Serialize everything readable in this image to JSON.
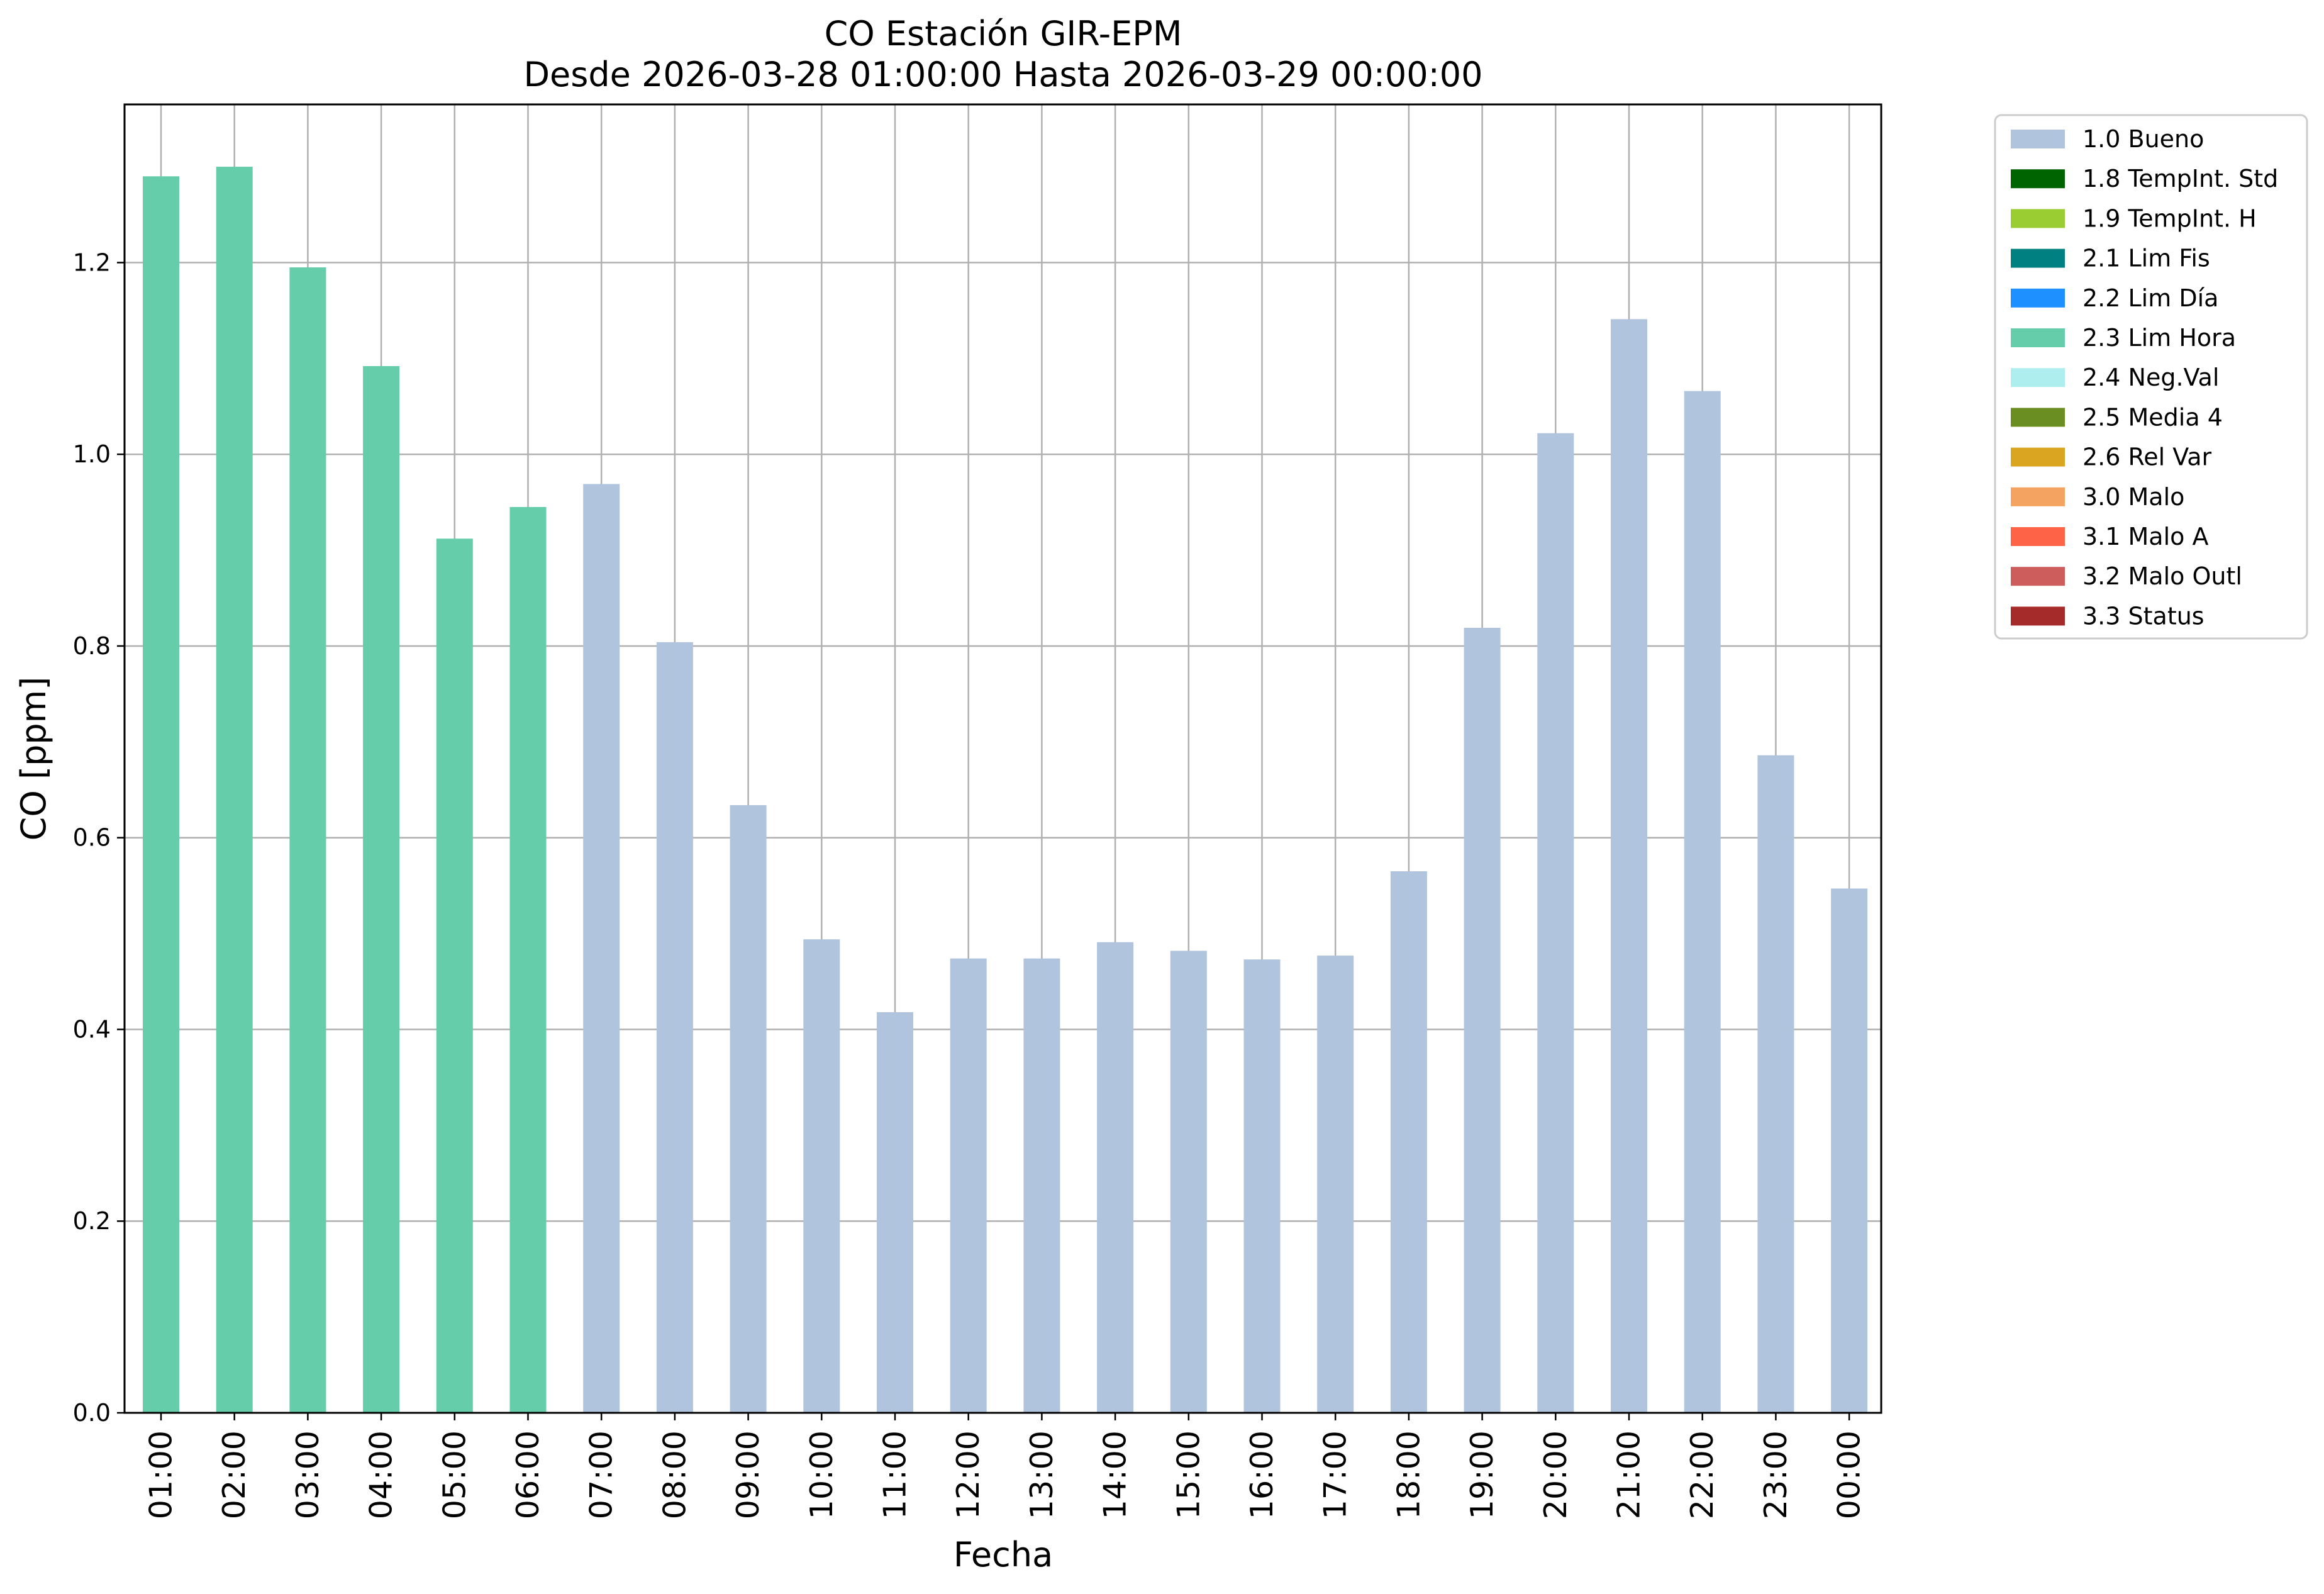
{
  "chart_data": {
    "type": "bar",
    "title": "CO Estación GIR-EPM",
    "subtitle": "Desde 2026-03-28 01:00:00 Hasta 2026-03-29 00:00:00",
    "xlabel": "Fecha",
    "ylabel": "CO [ppm]",
    "ylim": [
      0,
      1.365
    ],
    "yticks": [
      "0.0",
      "0.2",
      "0.4",
      "0.6",
      "0.8",
      "1.0",
      "1.2"
    ],
    "ytick_values": [
      0,
      0.2,
      0.4,
      0.6,
      0.8,
      1.0,
      1.2
    ],
    "grid": true,
    "legend_position": "outside right, top",
    "categories": [
      "01:00",
      "02:00",
      "03:00",
      "04:00",
      "05:00",
      "06:00",
      "07:00",
      "08:00",
      "09:00",
      "10:00",
      "11:00",
      "12:00",
      "13:00",
      "14:00",
      "15:00",
      "16:00",
      "17:00",
      "18:00",
      "19:00",
      "20:00",
      "21:00",
      "22:00",
      "23:00",
      "00:00"
    ],
    "values": [
      1.29,
      1.3,
      1.195,
      1.092,
      0.912,
      0.945,
      0.969,
      0.804,
      0.634,
      0.494,
      0.418,
      0.474,
      0.474,
      0.491,
      0.482,
      0.473,
      0.477,
      0.565,
      0.819,
      1.022,
      1.141,
      1.066,
      0.686,
      0.547
    ],
    "flags": [
      "2.3 Lim Hora",
      "2.3 Lim Hora",
      "2.3 Lim Hora",
      "2.3 Lim Hora",
      "2.3 Lim Hora",
      "2.3 Lim Hora",
      "1.0 Bueno",
      "1.0 Bueno",
      "1.0 Bueno",
      "1.0 Bueno",
      "1.0 Bueno",
      "1.0 Bueno",
      "1.0 Bueno",
      "1.0 Bueno",
      "1.0 Bueno",
      "1.0 Bueno",
      "1.0 Bueno",
      "1.0 Bueno",
      "1.0 Bueno",
      "1.0 Bueno",
      "1.0 Bueno",
      "1.0 Bueno",
      "1.0 Bueno",
      "1.0 Bueno"
    ],
    "legend": [
      {
        "label": "1.0 Bueno",
        "color": "#b0c4de"
      },
      {
        "label": "1.8 TempInt. Std",
        "color": "#006400"
      },
      {
        "label": "1.9 TempInt. H",
        "color": "#9acd32"
      },
      {
        "label": "2.1 Lim Fis",
        "color": "#008080"
      },
      {
        "label": "2.2 Lim Día",
        "color": "#1e90ff"
      },
      {
        "label": "2.3 Lim Hora",
        "color": "#66cdaa"
      },
      {
        "label": "2.4 Neg.Val",
        "color": "#afeeee"
      },
      {
        "label": "2.5 Media 4",
        "color": "#6b8e23"
      },
      {
        "label": "2.6 Rel Var",
        "color": "#daa520"
      },
      {
        "label": "3.0 Malo",
        "color": "#f4a460"
      },
      {
        "label": "3.1 Malo A",
        "color": "#ff6347"
      },
      {
        "label": "3.2 Malo Outl",
        "color": "#cd5c5c"
      },
      {
        "label": "3.3 Status",
        "color": "#a52a2a"
      }
    ]
  }
}
